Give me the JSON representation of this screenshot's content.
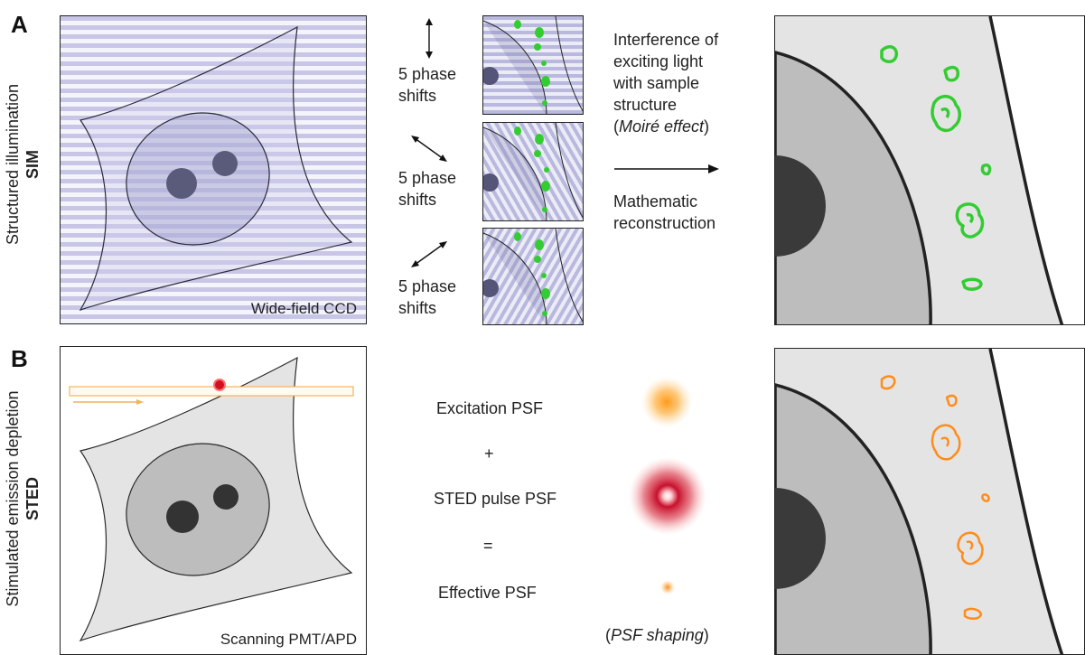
{
  "panel_a": {
    "letter": "A",
    "side_label_line1": "Structured illumination",
    "side_label_line2": "SIM",
    "detector_label": "Wide-field CCD",
    "phase_shift_labels": [
      {
        "line1": "5 phase",
        "line2": "shifts"
      },
      {
        "line1": "5 phase",
        "line2": "shifts"
      },
      {
        "line1": "5 phase",
        "line2": "shifts"
      }
    ],
    "interference_text": {
      "line1": "Interference of",
      "line2": "exciting light",
      "line3": "with sample",
      "line4": "structure",
      "line5_prefix": "(",
      "line5_italic": "Moiré effect",
      "line5_suffix": ")"
    },
    "reconstruction_text": {
      "line1": "Mathematic",
      "line2": "reconstruction"
    },
    "fluorophore_color": "#33cc33",
    "stripe_color": "#c7c6e6"
  },
  "panel_b": {
    "letter": "B",
    "side_label_line1": "Stimulated emission depletion",
    "side_label_line2": "STED",
    "detector_label": "Scanning PMT/APD",
    "psf_labels": {
      "excitation": "Excitation PSF",
      "plus": "+",
      "sted": "STED pulse PSF",
      "equals": "=",
      "effective": "Effective PSF"
    },
    "psf_shaping": {
      "prefix": "(",
      "italic": "PSF shaping",
      "suffix": ")"
    },
    "fluorophore_color": "#ff8c1a",
    "sted_color": "#c8102e"
  }
}
